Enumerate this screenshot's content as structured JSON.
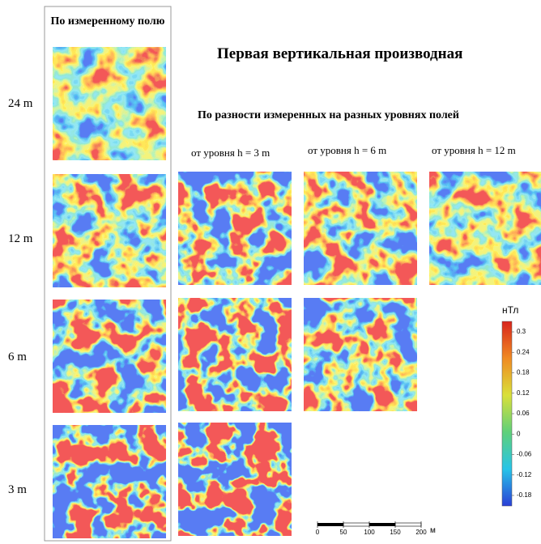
{
  "column_header": "По измеренному полю",
  "title": "Первая вертикальная производная",
  "subtitle": "По разности измеренных на разных уровнях полей",
  "columns": [
    "от уровня h = 3 m",
    "от уровня h = 6 m",
    "от уровня h = 12 m"
  ],
  "rows": [
    "24 m",
    "12 m",
    "6 m",
    "3 m"
  ],
  "colorbar": {
    "unit": "нТл",
    "ticks": [
      0.3,
      0.24,
      0.18,
      0.12,
      0.06,
      0,
      -0.06,
      -0.12,
      -0.18
    ]
  },
  "scale_bar": {
    "ticks": [
      0,
      50,
      100,
      150,
      200
    ],
    "unit": "м"
  }
}
